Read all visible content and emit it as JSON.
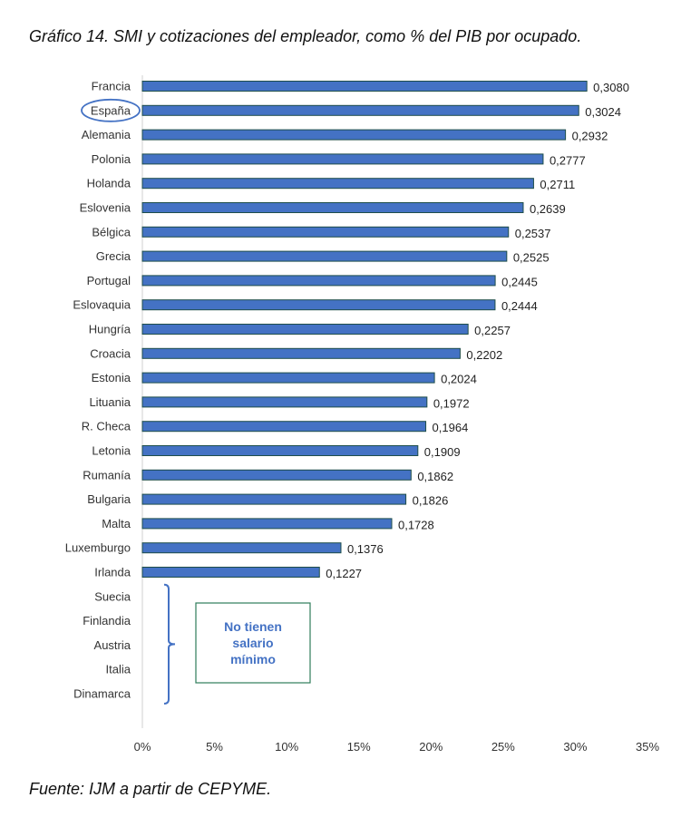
{
  "title": "Gráfico 14. SMI y cotizaciones del empleador, como % del PIB por ocupado.",
  "source": "Fuente: IJM a partir de CEPYME.",
  "colors": {
    "bar": "#4472C4",
    "bar_border": "#1F4E4A",
    "highlight": "#4472C4",
    "note_border": "#2E7D5B"
  },
  "chart_data": {
    "type": "bar",
    "orientation": "horizontal",
    "categories": [
      "Francia",
      "España",
      "Alemania",
      "Polonia",
      "Holanda",
      "Eslovenia",
      "Bélgica",
      "Grecia",
      "Portugal",
      "Eslovaquia",
      "Hungría",
      "Croacia",
      "Estonia",
      "Lituania",
      "R. Checa",
      "Letonia",
      "Rumanía",
      "Bulgaria",
      "Malta",
      "Luxemburgo",
      "Irlanda",
      "Suecia",
      "Finlandia",
      "Austria",
      "Italia",
      "Dinamarca"
    ],
    "values": [
      0.308,
      0.3024,
      0.2932,
      0.2777,
      0.2711,
      0.2639,
      0.2537,
      0.2525,
      0.2445,
      0.2444,
      0.2257,
      0.2202,
      0.2024,
      0.1972,
      0.1964,
      0.1909,
      0.1862,
      0.1826,
      0.1728,
      0.1376,
      0.1227,
      null,
      null,
      null,
      null,
      null
    ],
    "value_labels": [
      "0,3080",
      "0,3024",
      "0,2932",
      "0,2777",
      "0,2711",
      "0,2639",
      "0,2537",
      "0,2525",
      "0,2445",
      "0,2444",
      "0,2257",
      "0,2202",
      "0,2024",
      "0,1972",
      "0,1964",
      "0,1909",
      "0,1862",
      "0,1826",
      "0,1728",
      "0,1376",
      "0,1227",
      "",
      "",
      "",
      "",
      ""
    ],
    "xlim": [
      0,
      0.35
    ],
    "x_ticks": [
      0,
      0.05,
      0.1,
      0.15,
      0.2,
      0.25,
      0.3,
      0.35
    ],
    "x_tick_labels": [
      "0%",
      "5%",
      "10%",
      "15%",
      "20%",
      "25%",
      "30%",
      "35%"
    ],
    "highlighted_category": "España",
    "annotation": [
      "No tienen",
      "salario",
      "mínimo"
    ],
    "grid": false
  }
}
